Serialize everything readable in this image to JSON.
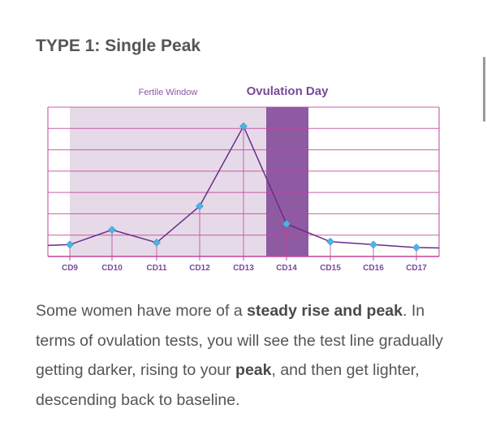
{
  "page": {
    "heading": "TYPE 1: Single Peak",
    "paragraph": {
      "t1": "Some women have more of a ",
      "b1": "steady rise and peak",
      "t2": ". In terms of ovulation tests, you will see the test line gradually getting darker, rising to your ",
      "b2": "peak",
      "t3": ", and then get lighter,  descending back to baseline."
    }
  },
  "colors": {
    "text": "#555555",
    "grid": "#c0469a",
    "fertile_fill": "#e6dae9",
    "ovulation_fill": "#8e5aa2",
    "line": "#6b2d85",
    "marker": "#4fb3e4",
    "label_purple": "#7a4a9a"
  },
  "chart_data": {
    "type": "line",
    "categories": [
      "CD9",
      "CD10",
      "CD11",
      "CD12",
      "CD13",
      "CD14",
      "CD15",
      "CD16",
      "CD17"
    ],
    "values": [
      0.6,
      1.35,
      0.7,
      2.55,
      6.6,
      1.65,
      0.75,
      0.6,
      0.45
    ],
    "ylim": [
      0,
      7
    ],
    "fertile_window_label": "Fertile Window",
    "ovulation_label": "Ovulation Day",
    "grid": true
  }
}
